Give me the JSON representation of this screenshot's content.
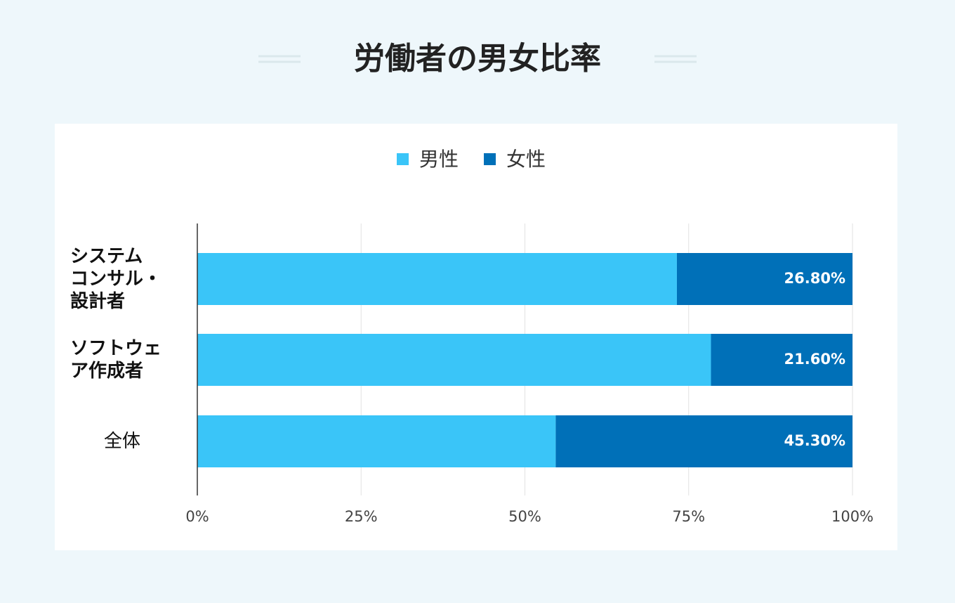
{
  "chart_data": {
    "type": "stacked-bar-horizontal",
    "title": "労働者の男女比率",
    "categories": [
      "システム\nコンサル・\n設計者",
      "ソフトウェ\nア作成者",
      "全体"
    ],
    "series": [
      {
        "name": "男性",
        "color": "#3ac5f8",
        "values": [
          73.2,
          78.4,
          54.7
        ]
      },
      {
        "name": "女性",
        "color": "#0070b8",
        "values": [
          26.8,
          21.6,
          45.3
        ],
        "value_labels": [
          "26.80%",
          "21.60%",
          "45.30%"
        ]
      }
    ],
    "xlim": [
      0,
      100
    ],
    "xticks": [
      {
        "value": 0,
        "label": "0%"
      },
      {
        "value": 25,
        "label": "25%"
      },
      {
        "value": 50,
        "label": "50%"
      },
      {
        "value": 75,
        "label": "75%"
      },
      {
        "value": 100,
        "label": "100%"
      }
    ],
    "grid": true,
    "legend": "top"
  }
}
